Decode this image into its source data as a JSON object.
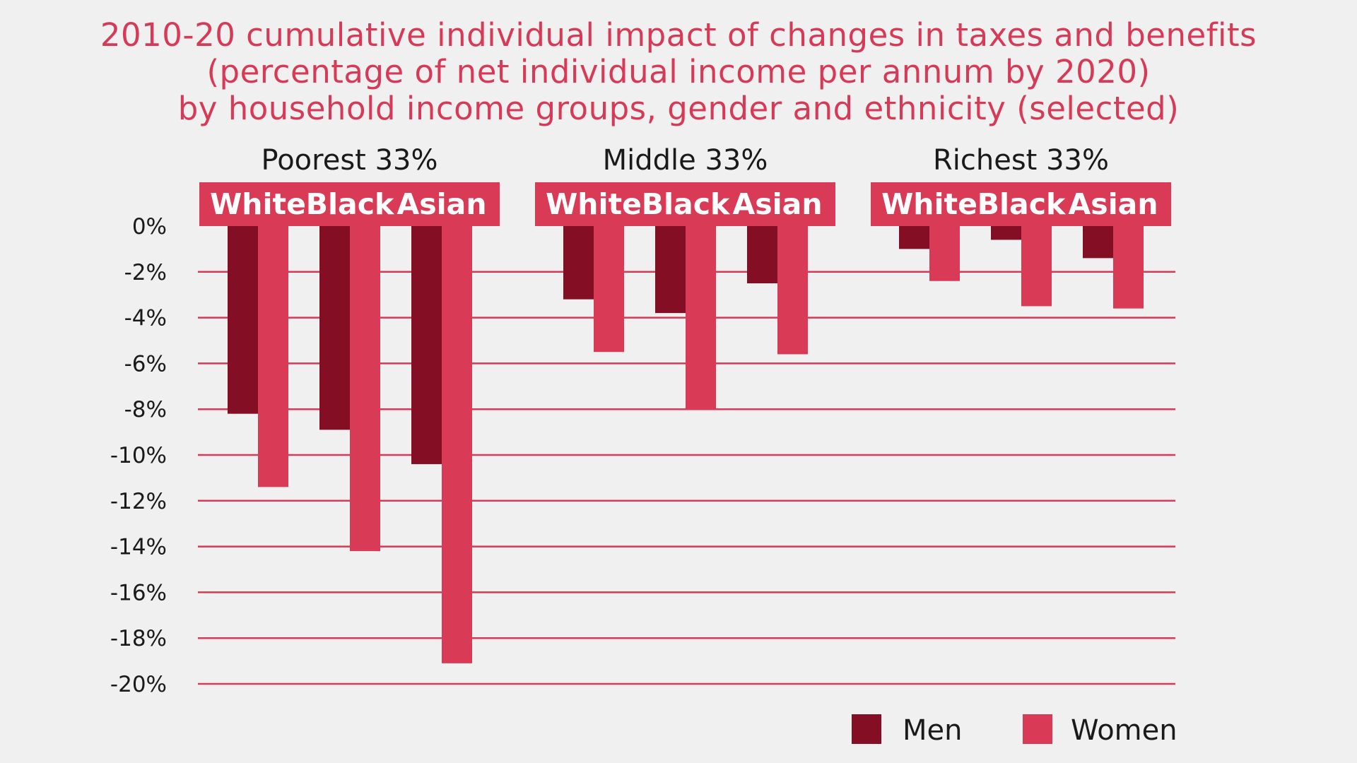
{
  "colors": {
    "men": "#840f24",
    "women": "#d93a56",
    "accent": "#d63a56",
    "background": "#f0f0f0"
  },
  "chart_data": {
    "type": "bar",
    "title": [
      "2010-20 cumulative individual impact of changes in taxes and benefits",
      "(percentage of net individual income per annum by 2020)",
      "by household income groups, gender and ethnicity (selected)"
    ],
    "groups": [
      {
        "label": "Poorest 33%",
        "categories": [
          "White",
          "Black",
          "Asian"
        ]
      },
      {
        "label": "Middle 33%",
        "categories": [
          "White",
          "Black",
          "Asian"
        ]
      },
      {
        "label": "Richest 33%",
        "categories": [
          "White",
          "Black",
          "Asian"
        ]
      }
    ],
    "series": [
      {
        "name": "Men",
        "values": [
          [
            -8.2,
            -8.9,
            -10.4
          ],
          [
            -3.2,
            -3.8,
            -2.5
          ],
          [
            -1.0,
            -0.6,
            -1.4
          ]
        ]
      },
      {
        "name": "Women",
        "values": [
          [
            -11.4,
            -14.2,
            -19.1
          ],
          [
            -5.5,
            -8.0,
            -5.6
          ],
          [
            -2.4,
            -3.5,
            -3.6
          ]
        ]
      }
    ],
    "ylim": [
      -20,
      0
    ],
    "yticks": [
      0,
      -2,
      -4,
      -6,
      -8,
      -10,
      -12,
      -14,
      -16,
      -18,
      -20
    ],
    "ytick_labels": [
      "0%",
      "-2%",
      "-4%",
      "-6%",
      "-8%",
      "-10%",
      "-12%",
      "-14%",
      "-16%",
      "-18%",
      "-20%"
    ],
    "grid": true,
    "legend": {
      "position": "bottom-right",
      "entries": [
        "Men",
        "Women"
      ]
    },
    "xlabel": "",
    "ylabel": ""
  }
}
